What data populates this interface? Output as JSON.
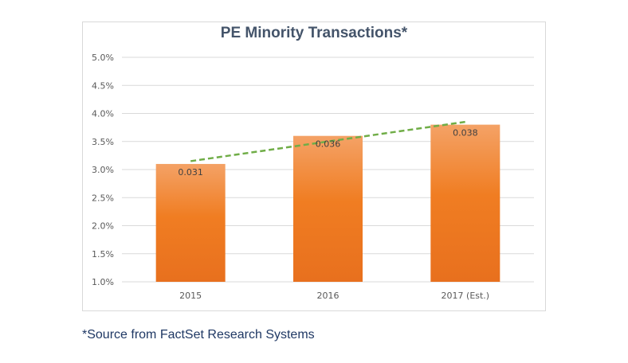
{
  "chart_data": {
    "type": "bar",
    "title": "PE Minority Transactions*",
    "categories": [
      "2015",
      "2016",
      "2017 (Est.)"
    ],
    "values": [
      0.031,
      0.036,
      0.038
    ],
    "data_labels": [
      "0.031",
      "0.036",
      "0.038"
    ],
    "ylim": [
      0.01,
      0.05
    ],
    "yticks": [
      0.01,
      0.015,
      0.02,
      0.025,
      0.03,
      0.035,
      0.04,
      0.045,
      0.05
    ],
    "ytick_labels": [
      "1.0%",
      "1.5%",
      "2.0%",
      "2.5%",
      "3.0%",
      "3.5%",
      "4.0%",
      "4.5%",
      "5.0%"
    ],
    "xlabel": "",
    "ylabel": "",
    "grid": true,
    "trendline": {
      "type": "linear",
      "style": "dashed"
    },
    "colors": {
      "bar_top": "#f4a266",
      "bar_mid": "#f07d22",
      "bar_bottom": "#e8701e",
      "trendline": "#70ad47",
      "grid": "#d9d9d9",
      "title": "#44546a"
    }
  },
  "footnote": "*Source from FactSet Research Systems"
}
